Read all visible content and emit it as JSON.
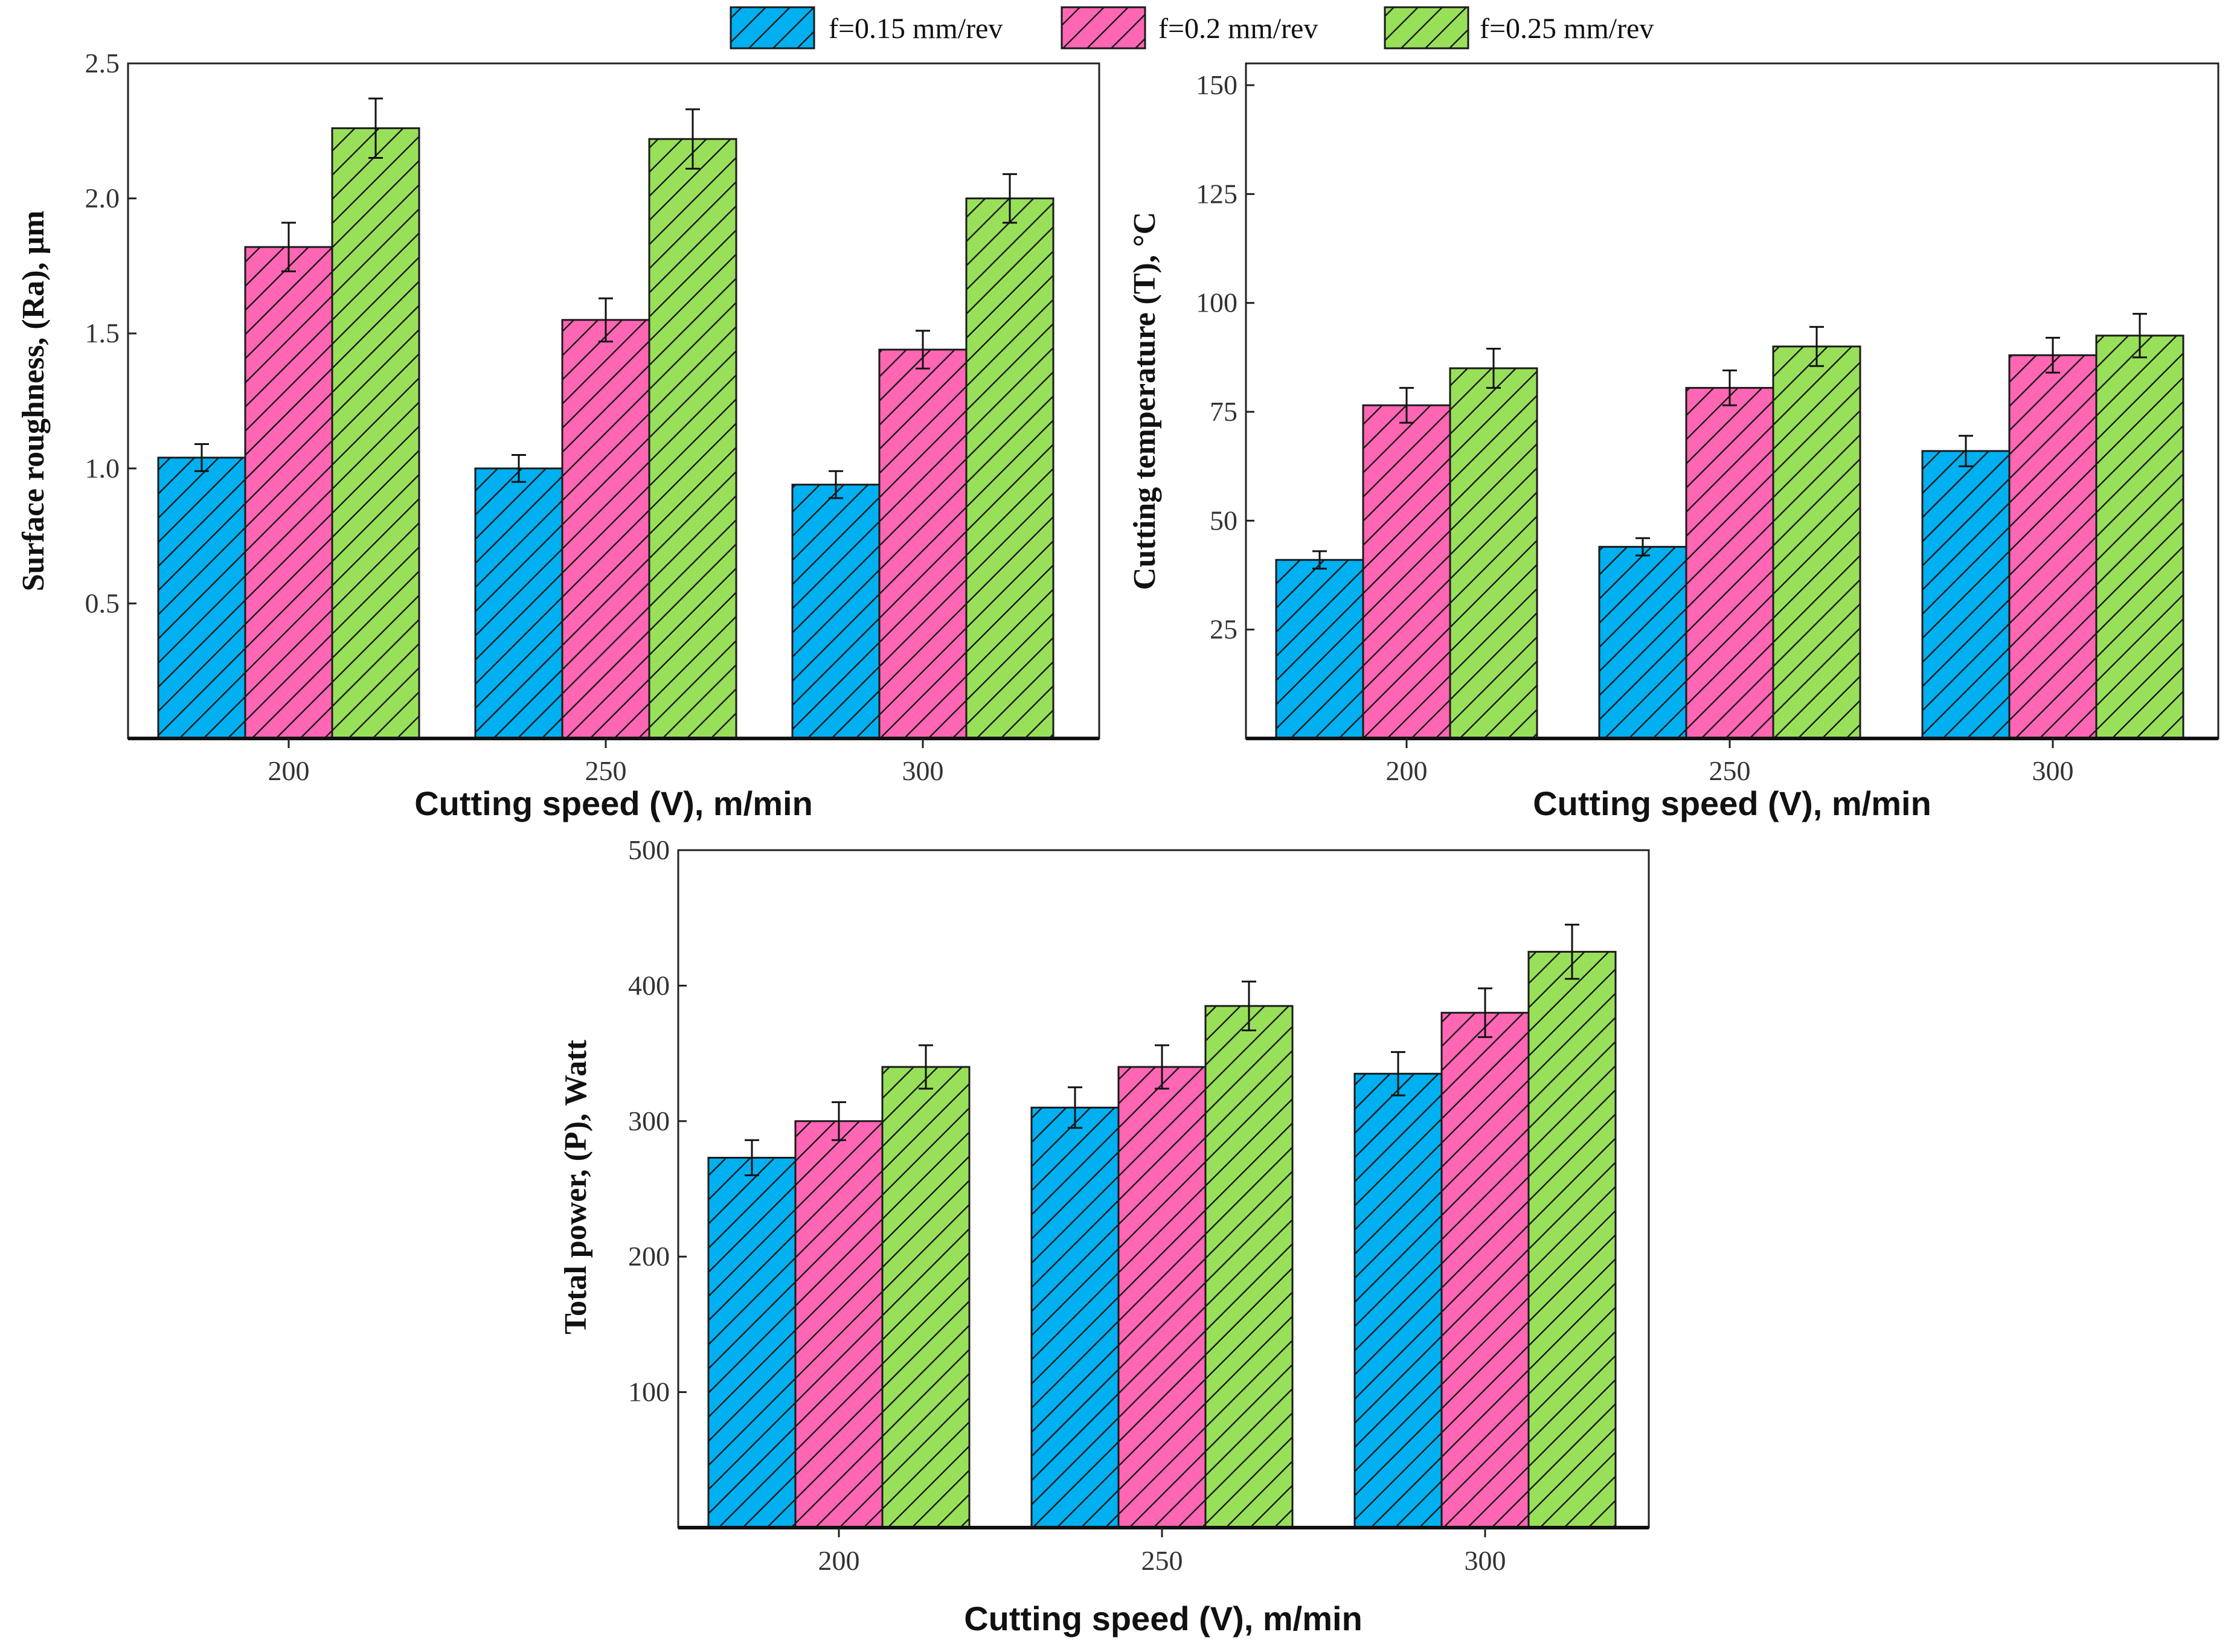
{
  "legend": [
    {
      "label": "f=0.15 mm/rev",
      "color": "#00b0f0"
    },
    {
      "label": "f=0.2 mm/rev",
      "color": "#ff66b3"
    },
    {
      "label": "f=0.25 mm/rev",
      "color": "#99e05a"
    }
  ],
  "chart_data": [
    {
      "type": "bar",
      "title": "",
      "xlabel": "Cutting speed (V), m/min",
      "ylabel": "Surface roughness, (Ra), μm",
      "categories": [
        "200",
        "250",
        "300"
      ],
      "ylim": [
        0,
        2.5
      ],
      "yticks": [
        "0.5",
        "1.0",
        "1.5",
        "2.0",
        "2.5"
      ],
      "grid": false,
      "series": [
        {
          "name": "f=0.15 mm/rev",
          "values": [
            1.04,
            1.0,
            0.94
          ],
          "errors": [
            0.05,
            0.05,
            0.05
          ]
        },
        {
          "name": "f=0.2 mm/rev",
          "values": [
            1.82,
            1.55,
            1.44
          ],
          "errors": [
            0.09,
            0.08,
            0.07
          ]
        },
        {
          "name": "f=0.25 mm/rev",
          "values": [
            2.26,
            2.22,
            2.0
          ],
          "errors": [
            0.11,
            0.11,
            0.09
          ]
        }
      ]
    },
    {
      "type": "bar",
      "title": "",
      "xlabel": "Cutting speed (V), m/min",
      "ylabel": "Cutting temperature (T), °C",
      "categories": [
        "200",
        "250",
        "300"
      ],
      "ylim": [
        0,
        155
      ],
      "yticks": [
        "25",
        "50",
        "75",
        "100",
        "125",
        "150"
      ],
      "grid": false,
      "series": [
        {
          "name": "f=0.15 mm/rev",
          "values": [
            41,
            44,
            66
          ],
          "errors": [
            2,
            2,
            3.5
          ]
        },
        {
          "name": "f=0.2 mm/rev",
          "values": [
            76.5,
            80.5,
            88
          ],
          "errors": [
            4,
            4,
            4
          ]
        },
        {
          "name": "f=0.25 mm/rev",
          "values": [
            85,
            90,
            92.5
          ],
          "errors": [
            4.5,
            4.5,
            5
          ]
        }
      ]
    },
    {
      "type": "bar",
      "title": "",
      "xlabel": "Cutting speed (V), m/min",
      "ylabel": "Total power, (P), Watt",
      "categories": [
        "200",
        "250",
        "300"
      ],
      "ylim": [
        0,
        500
      ],
      "yticks": [
        "100",
        "200",
        "300",
        "400",
        "500"
      ],
      "grid": false,
      "series": [
        {
          "name": "f=0.15 mm/rev",
          "values": [
            273,
            310,
            335
          ],
          "errors": [
            13,
            15,
            16
          ]
        },
        {
          "name": "f=0.2 mm/rev",
          "values": [
            300,
            340,
            380
          ],
          "errors": [
            14,
            16,
            18
          ]
        },
        {
          "name": "f=0.25 mm/rev",
          "values": [
            340,
            385,
            425
          ],
          "errors": [
            16,
            18,
            20
          ]
        }
      ]
    }
  ]
}
